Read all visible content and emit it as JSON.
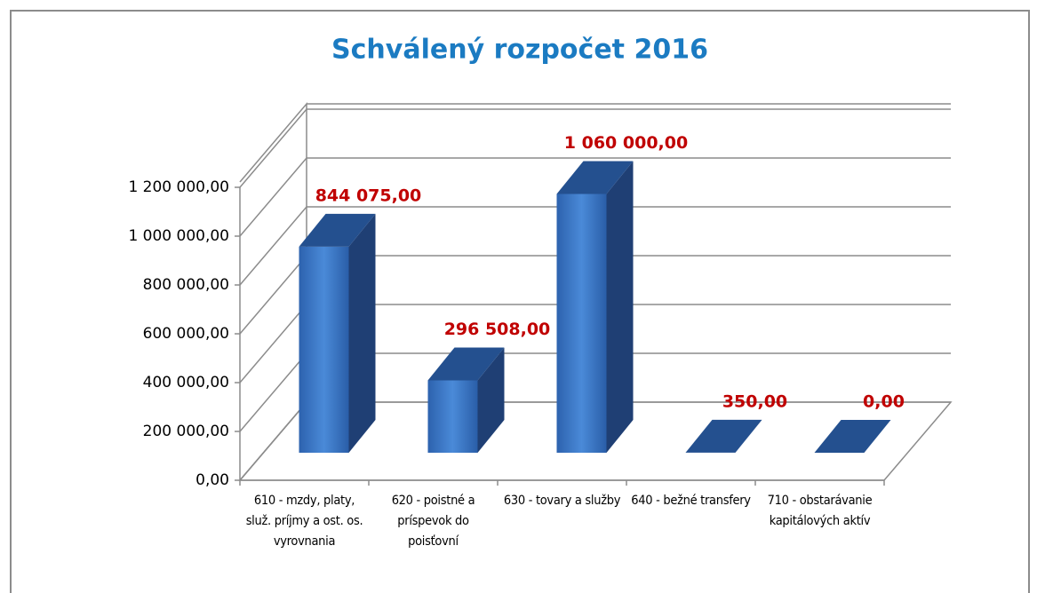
{
  "chart_data": {
    "type": "bar3d",
    "title": "Schválený rozpočet 2016",
    "categories": [
      "610 - mzdy, platy, služ. príjmy a ost. os. vyrovnania",
      "620 - poistné a príspevok do poisťovní",
      "630 - tovary a služby",
      "640 - bežné transfery",
      "710 - obstarávanie kapitálových aktív"
    ],
    "values": [
      844075,
      296508,
      1060000,
      350,
      0
    ],
    "value_labels": [
      "844 075,00",
      "296 508,00",
      "1 060 000,00",
      "350,00",
      "0,00"
    ],
    "color": "#3a78c8",
    "ylim": [
      0,
      1200000
    ],
    "yticks": [
      {
        "value": 0,
        "label": "0,00"
      },
      {
        "value": 200000,
        "label": "200 000,00"
      },
      {
        "value": 400000,
        "label": "400 000,00"
      },
      {
        "value": 600000,
        "label": "600 000,00"
      },
      {
        "value": 800000,
        "label": "800 000,00"
      },
      {
        "value": 1000000,
        "label": "1 000 000,00"
      },
      {
        "value": 1200000,
        "label": "1 200 000,00"
      }
    ],
    "grid": true
  }
}
